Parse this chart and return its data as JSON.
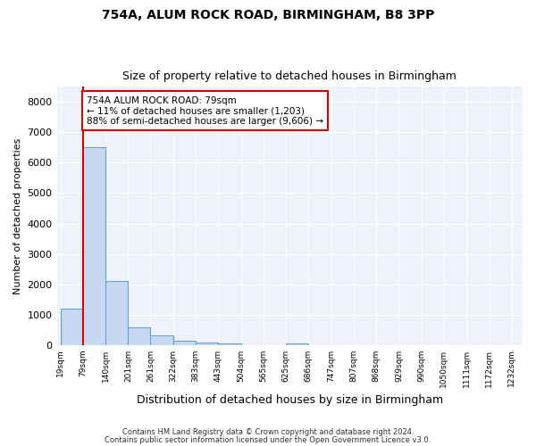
{
  "title1": "754A, ALUM ROCK ROAD, BIRMINGHAM, B8 3PP",
  "title2": "Size of property relative to detached houses in Birmingham",
  "xlabel": "Distribution of detached houses by size in Birmingham",
  "ylabel": "Number of detached properties",
  "bin_edges": [
    19,
    79,
    140,
    201,
    261,
    322,
    383,
    443,
    504,
    565,
    625,
    686,
    747,
    807,
    868,
    929,
    990,
    1050,
    1111,
    1172,
    1232
  ],
  "bar_heights": [
    1200,
    6500,
    2100,
    580,
    300,
    130,
    65,
    50,
    0,
    0,
    60,
    0,
    0,
    0,
    0,
    0,
    0,
    0,
    0,
    0
  ],
  "property_size": 79,
  "bar_color": "#c5d8f0",
  "bar_edge_color": "#5b9bd5",
  "vline_color": "#cc0000",
  "annotation_text": "754A ALUM ROCK ROAD: 79sqm\n← 11% of detached houses are smaller (1,203)\n88% of semi-detached houses are larger (9,606) →",
  "annotation_box_color": "#ffffff",
  "annotation_box_edge": "#cc0000",
  "footer1": "Contains HM Land Registry data © Crown copyright and database right 2024.",
  "footer2": "Contains public sector information licensed under the Open Government Licence v3.0.",
  "ylim": [
    0,
    8500
  ],
  "yticks": [
    0,
    1000,
    2000,
    3000,
    4000,
    5000,
    6000,
    7000,
    8000
  ],
  "background_color": "#edf2fb"
}
